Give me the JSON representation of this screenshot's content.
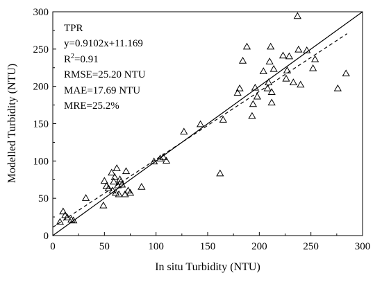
{
  "chart_data": {
    "type": "scatter",
    "xlabel": "In situ Turbidity (NTU)",
    "ylabel": "Modelled Turbidity (NTU)",
    "xlim": [
      0,
      300
    ],
    "ylim": [
      0,
      300
    ],
    "xticks": [
      0,
      50,
      100,
      150,
      200,
      250,
      300
    ],
    "yticks": [
      0,
      50,
      100,
      150,
      200,
      250,
      300
    ],
    "grid": false,
    "legend": "none",
    "marker": "open-triangle",
    "annotations": {
      "method": "TPR",
      "equation": "y=0.9102x+11.169",
      "r2_prefix": "R",
      "r2_sup": "2",
      "r2_value": "=0.91",
      "rmse": "RMSE=25.20 NTU",
      "mae": "MAE=17.69 NTU",
      "mre": "MRE=25.2%"
    },
    "lines": [
      {
        "kind": "one-to-one",
        "style": "solid",
        "slope": 1,
        "intercept": 0,
        "x_range": [
          0,
          300
        ]
      },
      {
        "kind": "regression",
        "style": "dashed",
        "slope": 0.9102,
        "intercept": 11.169,
        "x_range": [
          0,
          285
        ]
      }
    ],
    "points": [
      [
        7,
        18
      ],
      [
        10,
        32
      ],
      [
        12,
        27
      ],
      [
        14,
        24
      ],
      [
        18,
        21
      ],
      [
        20,
        20
      ],
      [
        32,
        50
      ],
      [
        49,
        40
      ],
      [
        50,
        73
      ],
      [
        52,
        66
      ],
      [
        54,
        63
      ],
      [
        57,
        84
      ],
      [
        58,
        60
      ],
      [
        59,
        72
      ],
      [
        60,
        78
      ],
      [
        61,
        57
      ],
      [
        62,
        90
      ],
      [
        63,
        67
      ],
      [
        64,
        55
      ],
      [
        65,
        75
      ],
      [
        66,
        72
      ],
      [
        67,
        68
      ],
      [
        70,
        55
      ],
      [
        71,
        86
      ],
      [
        73,
        60
      ],
      [
        75,
        57
      ],
      [
        86,
        65
      ],
      [
        98,
        99
      ],
      [
        104,
        103
      ],
      [
        107,
        105
      ],
      [
        110,
        100
      ],
      [
        127,
        139
      ],
      [
        143,
        149
      ],
      [
        162,
        83
      ],
      [
        165,
        155
      ],
      [
        179,
        191
      ],
      [
        181,
        197
      ],
      [
        184,
        234
      ],
      [
        188,
        253
      ],
      [
        193,
        160
      ],
      [
        194,
        176
      ],
      [
        196,
        198
      ],
      [
        198,
        186
      ],
      [
        204,
        220
      ],
      [
        208,
        197
      ],
      [
        209,
        205
      ],
      [
        210,
        233
      ],
      [
        211,
        253
      ],
      [
        212,
        178
      ],
      [
        212,
        192
      ],
      [
        214,
        223
      ],
      [
        223,
        241
      ],
      [
        226,
        210
      ],
      [
        227,
        221
      ],
      [
        229,
        240
      ],
      [
        233,
        205
      ],
      [
        237,
        294
      ],
      [
        238,
        249
      ],
      [
        240,
        202
      ],
      [
        246,
        248
      ],
      [
        252,
        224
      ],
      [
        254,
        236
      ],
      [
        276,
        197
      ],
      [
        284,
        217
      ]
    ]
  }
}
